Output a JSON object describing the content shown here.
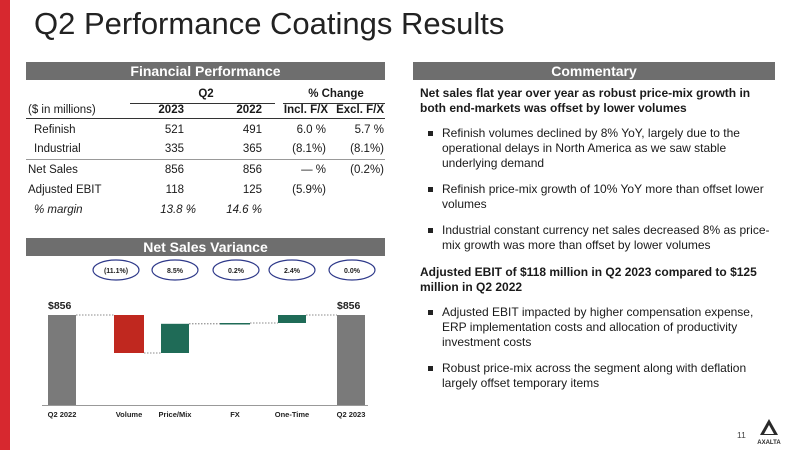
{
  "title": "Q2 Performance Coatings Results",
  "financial": {
    "header": "Financial Performance",
    "q2_label": "Q2",
    "change_label": "% Change",
    "units_label": "($ in millions)",
    "col_2023": "2023",
    "col_2022": "2022",
    "col_incl": "Incl. F/X",
    "col_excl": "Excl. F/X",
    "rows": [
      {
        "label": "Refinish",
        "v2023": "521",
        "v2022": "491",
        "incl": "6.0 %",
        "excl": "5.7 %"
      },
      {
        "label": "Industrial",
        "v2023": "335",
        "v2022": "365",
        "incl": "(8.1%)",
        "excl": "(8.1%)"
      },
      {
        "label": "Net Sales",
        "v2023": "856",
        "v2022": "856",
        "incl": "— %",
        "excl": "(0.2%)"
      },
      {
        "label": "Adjusted EBIT",
        "v2023": "118",
        "v2022": "125",
        "incl": "(5.9%)",
        "excl": ""
      },
      {
        "label": "% margin",
        "v2023": "13.8 %",
        "v2022": "14.6 %",
        "incl": "",
        "excl": ""
      }
    ]
  },
  "variance": {
    "header": "Net Sales Variance"
  },
  "chart_data": {
    "type": "bar",
    "categories": [
      "Q2 2022",
      "Volume",
      "Price/Mix",
      "FX",
      "One-Time",
      "Q2 2023"
    ],
    "values": [
      856,
      -95,
      73,
      2,
      20,
      856
    ],
    "bubbles": [
      "(11.1%)",
      "8.5%",
      "0.2%",
      "2.4%",
      "0.0%"
    ],
    "start_label": "$856",
    "end_label": "$856",
    "colors": {
      "total": "#7a7a7a",
      "negative": "#c0281f",
      "positive": "#1f6b57",
      "bubble_border": "#2f3a8a"
    }
  },
  "commentary": {
    "header": "Commentary",
    "head1": "Net sales flat year over year as robust price-mix growth in both end-markets was offset by lower volumes",
    "bullets1": [
      "Refinish volumes declined by 8% YoY, largely due to the operational delays in North America as we saw stable underlying demand",
      "Refinish price-mix growth of 10% YoY more than offset lower volumes",
      "Industrial constant currency net sales decreased 8% as price-mix growth was more than offset by lower volumes"
    ],
    "head2": "Adjusted EBIT of $118 million in Q2 2023 compared to $125 million in Q2 2022",
    "bullets2": [
      "Adjusted EBIT impacted by higher compensation expense, ERP implementation costs and allocation of productivity investment costs",
      "Robust price-mix across the segment along with deflation largely offset temporary items"
    ]
  },
  "footer": {
    "page_number": "11",
    "logo_text": "AXALTA"
  },
  "colors": {
    "accent": "#d7282f",
    "header_bg": "#6e6e6e"
  }
}
